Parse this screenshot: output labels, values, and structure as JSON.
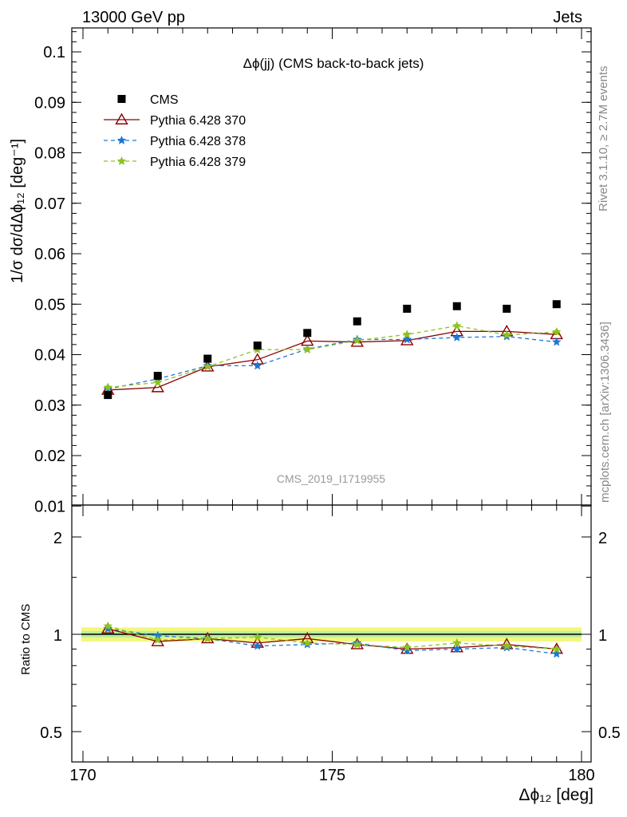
{
  "header": {
    "left": "13000 GeV pp",
    "right": "Jets"
  },
  "side_texts": {
    "rivet": "Rivet 3.1.10, ≥ 2.7M events",
    "mcplots": "mcplots.cern.ch [arXiv:1306.3436]"
  },
  "chart_data": {
    "type": "scatter",
    "title": "Δϕ(jj) (CMS back-to-back jets)",
    "watermark": "CMS_2019_I1719955",
    "xlabel": "Δϕ₁₂ [deg]",
    "ylabel": "1/σ dσ/dΔϕ₁₂ [deg⁻¹]",
    "ratio_ylabel": "Ratio to CMS",
    "xlim": [
      170,
      180
    ],
    "ylim": [
      0.01,
      0.105
    ],
    "ratio_ylim": [
      0.4,
      2.4
    ],
    "ratio_scale": "log",
    "x_ticks": [
      "170",
      "175",
      "180"
    ],
    "y_ticks": [
      "0.01",
      "0.02",
      "0.03",
      "0.04",
      "0.05",
      "0.06",
      "0.07",
      "0.08",
      "0.09",
      "0.1"
    ],
    "ratio_ticks": [
      "0.5",
      "1",
      "2"
    ],
    "legend_placement": "top-left",
    "x": [
      170.5,
      171.5,
      172.5,
      173.5,
      174.5,
      175.5,
      176.5,
      177.5,
      178.5,
      179.5
    ],
    "series": [
      {
        "name": "CMS",
        "color": "#000000",
        "marker": "square",
        "values": [
          0.032,
          0.0358,
          0.0392,
          0.0418,
          0.0443,
          0.0466,
          0.0491,
          0.0496,
          0.0491,
          0.05
        ],
        "ratio": [
          1.0,
          1.0,
          1.0,
          1.0,
          1.0,
          1.0,
          1.0,
          1.0,
          1.0,
          1.0
        ]
      },
      {
        "name": "Pythia 6.428 370",
        "color": "#8b0000",
        "marker": "triangle-open",
        "line": "solid",
        "values": [
          0.033,
          0.0335,
          0.0376,
          0.039,
          0.0427,
          0.0425,
          0.0428,
          0.0446,
          0.0446,
          0.044
        ],
        "ratio": [
          1.04,
          0.95,
          0.97,
          0.94,
          0.97,
          0.93,
          0.9,
          0.91,
          0.93,
          0.9
        ]
      },
      {
        "name": "Pythia 6.428 378",
        "color": "#1f77d4",
        "marker": "star",
        "line": "dashed",
        "values": [
          0.0332,
          0.0352,
          0.0378,
          0.0378,
          0.0411,
          0.043,
          0.043,
          0.0434,
          0.0436,
          0.0425
        ],
        "ratio": [
          1.04,
          0.99,
          0.97,
          0.92,
          0.93,
          0.94,
          0.89,
          0.9,
          0.91,
          0.87
        ]
      },
      {
        "name": "Pythia 6.428 379",
        "color": "#8dc21f",
        "marker": "star",
        "line": "dashed",
        "values": [
          0.0335,
          0.0345,
          0.0376,
          0.041,
          0.041,
          0.0428,
          0.044,
          0.0457,
          0.0439,
          0.0445
        ],
        "ratio": [
          1.06,
          0.96,
          0.97,
          0.98,
          0.94,
          0.93,
          0.91,
          0.94,
          0.92,
          0.9
        ]
      }
    ]
  }
}
